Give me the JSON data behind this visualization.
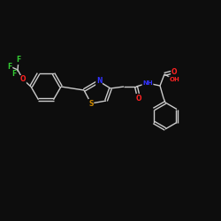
{
  "bg_color": "#0d0d0d",
  "bond_color": "#cccccc",
  "atom_colors": {
    "N": "#3333ff",
    "O": "#ff2222",
    "S": "#cc8800",
    "F": "#33cc33"
  },
  "figsize": [
    2.5,
    2.5
  ],
  "dpi": 100
}
